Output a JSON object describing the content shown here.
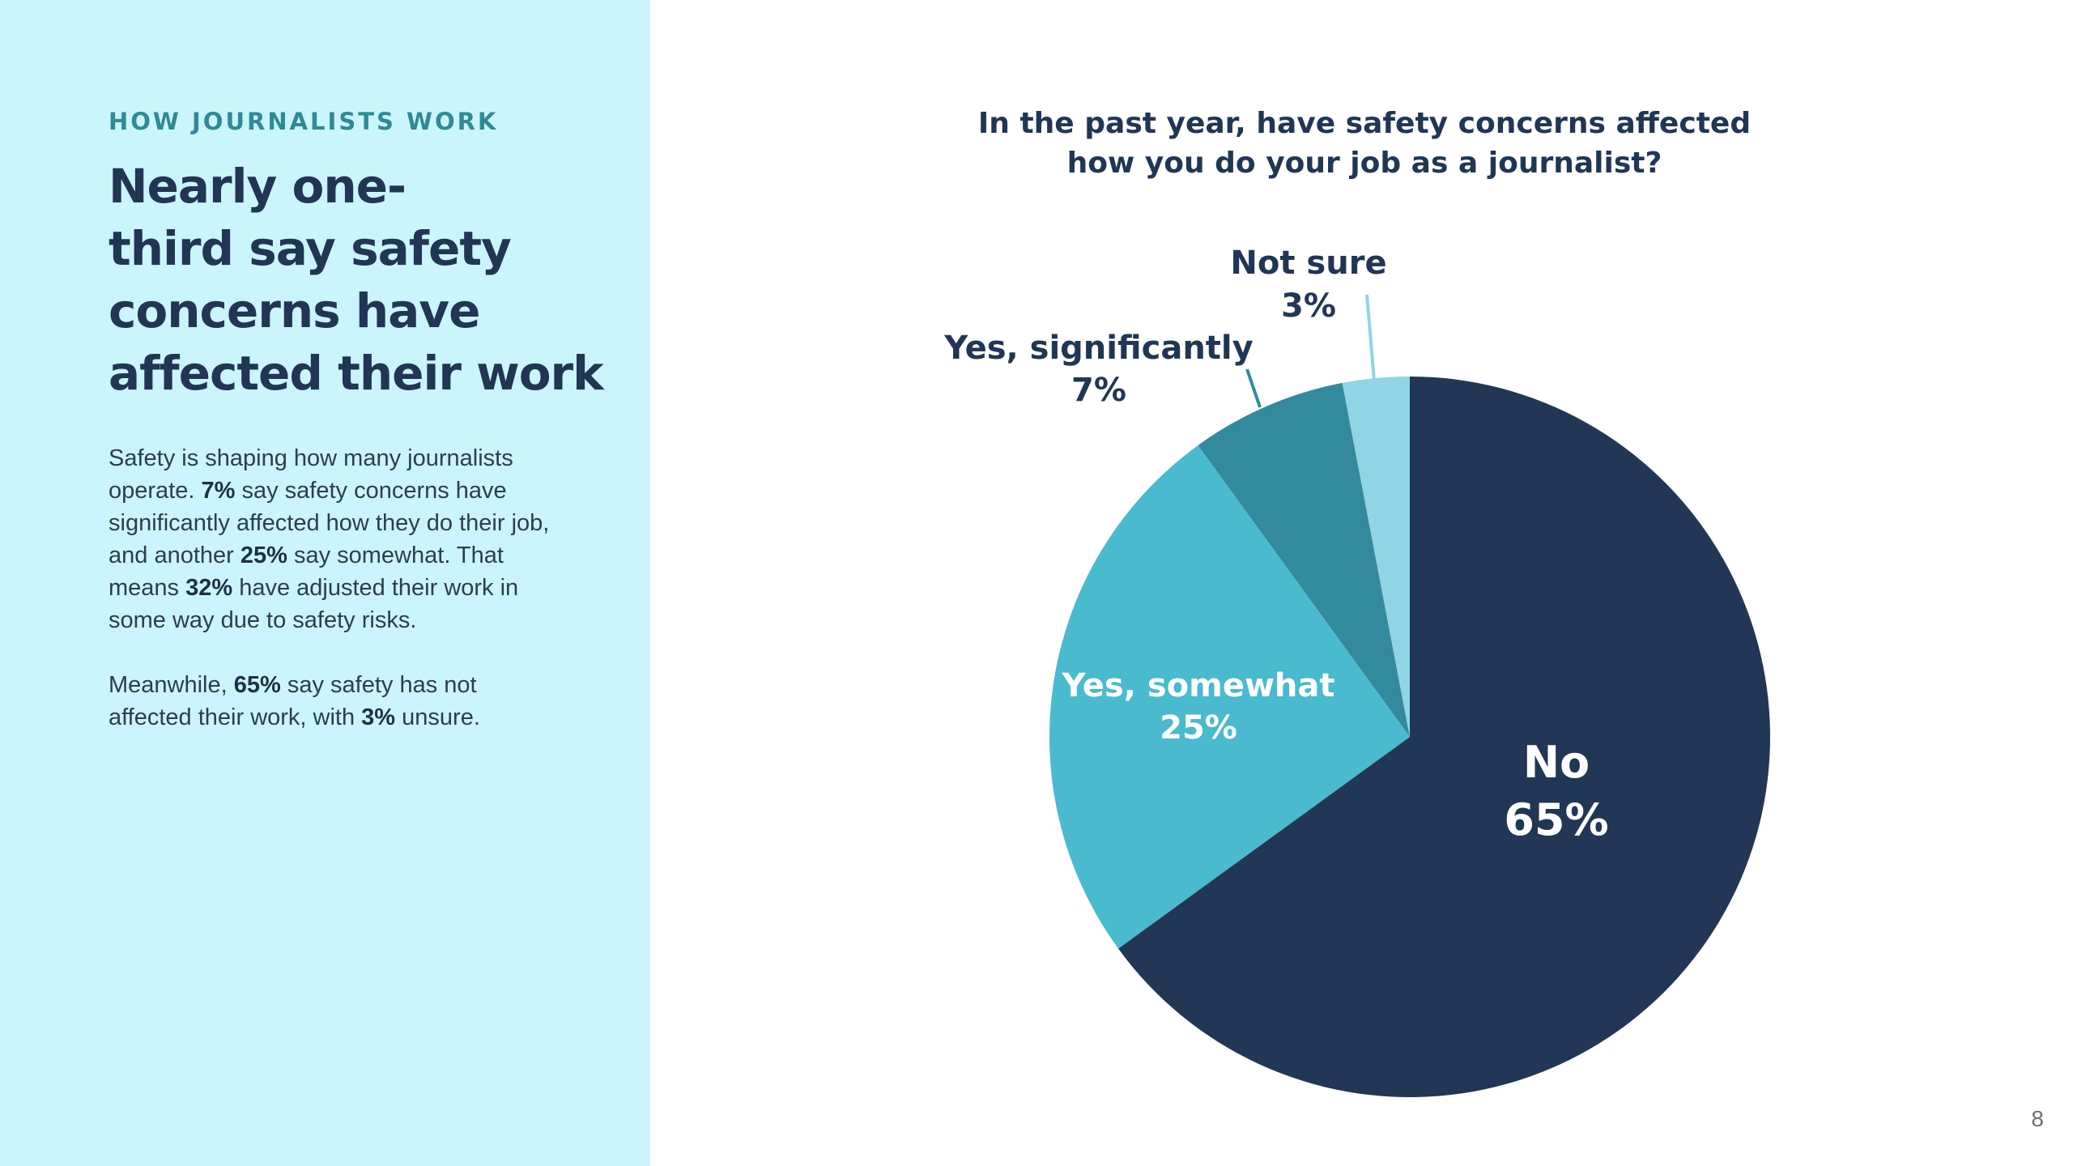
{
  "eyebrow": "HOW JOURNALISTS WORK",
  "headline": {
    "line1": "Nearly one-",
    "line2": "third say safety",
    "line3": "concerns have",
    "line4": "affected their work"
  },
  "body": {
    "p1_a": "Safety is shaping how many journalists operate. ",
    "p1_b": "7%",
    "p1_c": " say safety concerns have significantly affected how they do their job, and another ",
    "p1_d": "25%",
    "p1_e": " say somewhat. That means ",
    "p1_f": "32%",
    "p1_g": " have adjusted their work in some way due to safety risks.",
    "p2_a": "Meanwhile, ",
    "p2_b": "65%",
    "p2_c": " say safety has not affected their work, with ",
    "p2_d": "3%",
    "p2_e": " unsure."
  },
  "page_number": "8",
  "chart_data": {
    "type": "pie",
    "title": "In the past year, have safety concerns affected how you do your job as a journalist?",
    "start": "12 o'clock",
    "direction": "clockwise",
    "slices": [
      {
        "label": "No",
        "value": 65,
        "value_label": "65%",
        "color": "#223655"
      },
      {
        "label": "Yes, somewhat",
        "value": 25,
        "value_label": "25%",
        "color": "#4abacf"
      },
      {
        "label": "Yes, significantly",
        "value": 7,
        "value_label": "7%",
        "color": "#338a9c"
      },
      {
        "label": "Not sure",
        "value": 3,
        "value_label": "3%",
        "color": "#8fd5e3"
      }
    ]
  }
}
